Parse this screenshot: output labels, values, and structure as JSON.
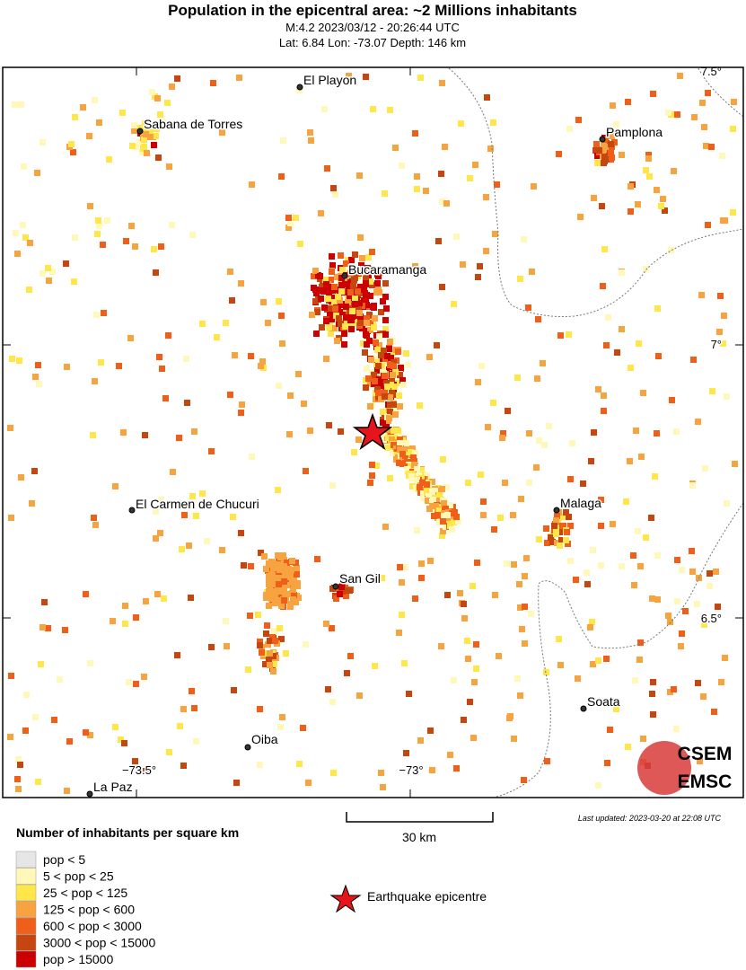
{
  "header": {
    "title": "Population in the epicentral area: ~2 Millions inhabitants",
    "line1": "M:4.2 2023/03/12 - 20:26:44 UTC",
    "line2": "Lat: 6.84 Lon: -73.07 Depth: 146 km"
  },
  "map": {
    "cities": [
      "El Playon",
      "Sabana de Torres",
      "Pamplona",
      "Bucaramanga",
      "El Carmen de Chucuri",
      "Malaga",
      "San Gil",
      "Soata",
      "Oiba",
      "La Paz"
    ],
    "lat_labels": [
      "7.5°",
      "7°",
      "6.5°"
    ],
    "lon_labels": [
      "−73.5°",
      "−73°"
    ],
    "scale_label": "30 km",
    "last_updated": "Last updated: 2023-03-20 at 22:08 UTC",
    "logo": [
      "CSEM",
      "EMSC"
    ]
  },
  "legend": {
    "title": "Number of inhabitants per square km",
    "items": [
      {
        "label": "pop < 5",
        "color": "#e6e6e6"
      },
      {
        "label": "5 < pop < 25",
        "color": "#fff8b8"
      },
      {
        "label": "25 < pop < 125",
        "color": "#ffe74a"
      },
      {
        "label": "125 < pop < 600",
        "color": "#f7a340"
      },
      {
        "label": "600 < pop < 3000",
        "color": "#ef5f1a"
      },
      {
        "label": "3000 < pop < 15000",
        "color": "#c5470f"
      },
      {
        "label": "pop > 15000",
        "color": "#cc0000"
      }
    ],
    "epicentre": "Earthquake epicentre"
  }
}
